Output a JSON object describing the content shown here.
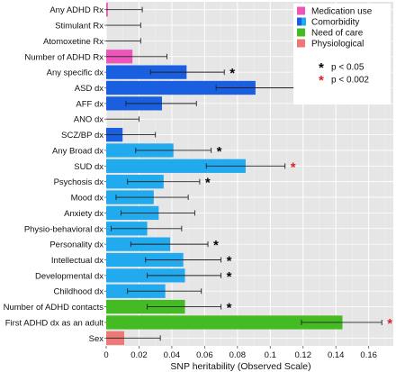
{
  "chart_data": {
    "type": "bar",
    "orientation": "horizontal",
    "xlabel": "SNP heritability (Observed Scale)",
    "xlim": [
      0,
      0.175
    ],
    "xticks": [
      "0",
      "0.02",
      "0.04",
      "0.06",
      "0.08",
      "0.1",
      "0.12",
      "0.14",
      "0.16"
    ],
    "xtick_values": [
      0,
      0.02,
      0.04,
      0.06,
      0.08,
      0.1,
      0.12,
      0.14,
      0.16
    ],
    "grid": true,
    "legend_placement": "top-right",
    "groups": [
      {
        "name": "Medication use",
        "color": "#ee55bb"
      },
      {
        "name": "Comorbidity",
        "colors": [
          "#1a5fe0",
          "#22aaee"
        ]
      },
      {
        "name": "Need of care",
        "color": "#44bb22"
      },
      {
        "name": "Physiological",
        "color": "#ee7777"
      }
    ],
    "significance_legend": [
      {
        "symbol": "*",
        "label": "p < 0.05",
        "color": "#000000"
      },
      {
        "symbol": "*",
        "label": "p < 0.002",
        "color": "#dd2222"
      }
    ],
    "categories": [
      {
        "label": "Any ADHD Rx",
        "value": 0.001,
        "ci_low": 0.0,
        "ci_high": 0.022,
        "group": "Medication use",
        "color": "#ee55bb",
        "sig": ""
      },
      {
        "label": "Stimulant Rx",
        "value": 0.0,
        "ci_low": 0.0,
        "ci_high": 0.021,
        "group": "Medication use",
        "color": "#ee55bb",
        "sig": ""
      },
      {
        "label": "Atomoxetine Rx",
        "value": 0.0,
        "ci_low": 0.0,
        "ci_high": 0.021,
        "group": "Medication use",
        "color": "#ee55bb",
        "sig": ""
      },
      {
        "label": "Number of ADHD Rx",
        "value": 0.016,
        "ci_low": 0.0,
        "ci_high": 0.037,
        "group": "Medication use",
        "color": "#ee55bb",
        "sig": ""
      },
      {
        "label": "Any specific dx",
        "value": 0.049,
        "ci_low": 0.027,
        "ci_high": 0.072,
        "group": "Comorbidity",
        "color": "#1a5fe0",
        "sig": "p<0.05"
      },
      {
        "label": "ASD dx",
        "value": 0.091,
        "ci_low": 0.067,
        "ci_high": 0.115,
        "group": "Comorbidity",
        "color": "#1a5fe0",
        "sig": "p<0.002"
      },
      {
        "label": "AFF dx",
        "value": 0.034,
        "ci_low": 0.012,
        "ci_high": 0.055,
        "group": "Comorbidity",
        "color": "#1a5fe0",
        "sig": ""
      },
      {
        "label": "ANO dx",
        "value": 0.0,
        "ci_low": 0.0,
        "ci_high": 0.02,
        "group": "Comorbidity",
        "color": "#1a5fe0",
        "sig": ""
      },
      {
        "label": "SCZ/BP dx",
        "value": 0.01,
        "ci_low": 0.0,
        "ci_high": 0.03,
        "group": "Comorbidity",
        "color": "#1a5fe0",
        "sig": ""
      },
      {
        "label": "Any Broad dx",
        "value": 0.041,
        "ci_low": 0.018,
        "ci_high": 0.064,
        "group": "Comorbidity",
        "color": "#22aaee",
        "sig": "p<0.05"
      },
      {
        "label": "SUD dx",
        "value": 0.085,
        "ci_low": 0.061,
        "ci_high": 0.109,
        "group": "Comorbidity",
        "color": "#22aaee",
        "sig": "p<0.002"
      },
      {
        "label": "Psychosis dx",
        "value": 0.035,
        "ci_low": 0.013,
        "ci_high": 0.057,
        "group": "Comorbidity",
        "color": "#22aaee",
        "sig": "p<0.05"
      },
      {
        "label": "Mood dx",
        "value": 0.029,
        "ci_low": 0.006,
        "ci_high": 0.05,
        "group": "Comorbidity",
        "color": "#22aaee",
        "sig": ""
      },
      {
        "label": "Anxiety dx",
        "value": 0.032,
        "ci_low": 0.009,
        "ci_high": 0.054,
        "group": "Comorbidity",
        "color": "#22aaee",
        "sig": ""
      },
      {
        "label": "Physio-behavioral dx",
        "value": 0.025,
        "ci_low": 0.003,
        "ci_high": 0.046,
        "group": "Comorbidity",
        "color": "#22aaee",
        "sig": ""
      },
      {
        "label": "Personality dx",
        "value": 0.039,
        "ci_low": 0.015,
        "ci_high": 0.062,
        "group": "Comorbidity",
        "color": "#22aaee",
        "sig": "p<0.05"
      },
      {
        "label": "Intellectual dx",
        "value": 0.047,
        "ci_low": 0.024,
        "ci_high": 0.07,
        "group": "Comorbidity",
        "color": "#22aaee",
        "sig": "p<0.05"
      },
      {
        "label": "Developmental dx",
        "value": 0.048,
        "ci_low": 0.025,
        "ci_high": 0.07,
        "group": "Comorbidity",
        "color": "#22aaee",
        "sig": "p<0.05"
      },
      {
        "label": "Childhood dx",
        "value": 0.036,
        "ci_low": 0.013,
        "ci_high": 0.058,
        "group": "Comorbidity",
        "color": "#22aaee",
        "sig": ""
      },
      {
        "label": "Number of ADHD contacts",
        "value": 0.048,
        "ci_low": 0.025,
        "ci_high": 0.07,
        "group": "Need of care",
        "color": "#44bb22",
        "sig": "p<0.05"
      },
      {
        "label": "First ADHD dx as an adult",
        "value": 0.144,
        "ci_low": 0.119,
        "ci_high": 0.168,
        "group": "Need of care",
        "color": "#44bb22",
        "sig": "p<0.002"
      },
      {
        "label": "Sex",
        "value": 0.011,
        "ci_low": 0.0,
        "ci_high": 0.033,
        "group": "Physiological",
        "color": "#ee7777",
        "sig": ""
      }
    ]
  }
}
